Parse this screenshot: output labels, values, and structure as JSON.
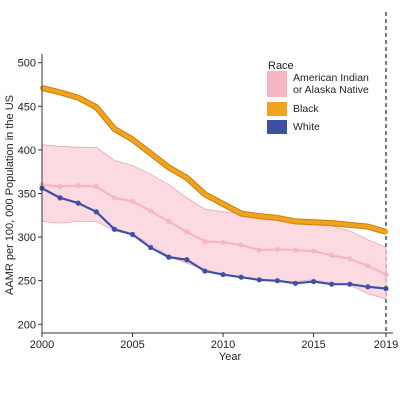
{
  "chart_data": {
    "type": "line",
    "xlabel": "Year",
    "ylabel": "AAMR per 100, 000 Population in the US",
    "xlim": [
      2000,
      2019
    ],
    "ylim": [
      190,
      510
    ],
    "x_ticks": [
      2000,
      2005,
      2010,
      2015,
      2019
    ],
    "y_ticks": [
      200,
      250,
      300,
      350,
      400,
      450,
      500
    ],
    "grid": false,
    "reference_line": {
      "x": 2019,
      "style": "dashed"
    },
    "legend": {
      "title": "Race",
      "position": "top-right",
      "entries": [
        {
          "lines": [
            "American Indian",
            "or Alaska Native"
          ],
          "color": "#F4B6C2"
        },
        {
          "lines": [
            "Black"
          ],
          "color": "#F0A31E"
        },
        {
          "lines": [
            "White"
          ],
          "color": "#3F4FA3"
        }
      ]
    },
    "x": [
      2000,
      2001,
      2002,
      2003,
      2004,
      2005,
      2006,
      2007,
      2008,
      2009,
      2010,
      2011,
      2012,
      2013,
      2014,
      2015,
      2016,
      2017,
      2018,
      2019
    ],
    "series": [
      {
        "name": "American Indian or Alaska Native",
        "color": "#F4B6C2",
        "band_color": "#FBD3DC",
        "values": [
          360,
          358,
          359,
          358,
          345,
          341,
          330,
          318,
          306,
          295,
          294,
          291,
          285,
          286,
          285,
          284,
          279,
          275,
          267,
          257
        ],
        "lower": [
          318,
          316,
          318,
          318,
          307,
          303,
          292,
          278,
          270,
          263,
          257,
          254,
          250,
          249,
          249,
          251,
          247,
          245,
          235,
          229
        ],
        "upper": [
          406,
          404,
          403,
          403,
          388,
          382,
          372,
          360,
          345,
          332,
          329,
          327,
          321,
          322,
          320,
          318,
          313,
          307,
          297,
          288
        ]
      },
      {
        "name": "Black",
        "color": "#F0A31E",
        "values": [
          471,
          466,
          460,
          449,
          424,
          412,
          396,
          380,
          368,
          349,
          338,
          327,
          324,
          322,
          318,
          317,
          316,
          314,
          312,
          306
        ]
      },
      {
        "name": "White",
        "color": "#3F4FA3",
        "values": [
          356,
          345,
          339,
          329,
          309,
          303,
          288,
          277,
          274,
          261,
          257,
          254,
          251,
          250,
          247,
          249,
          246,
          246,
          243,
          241
        ]
      }
    ]
  }
}
